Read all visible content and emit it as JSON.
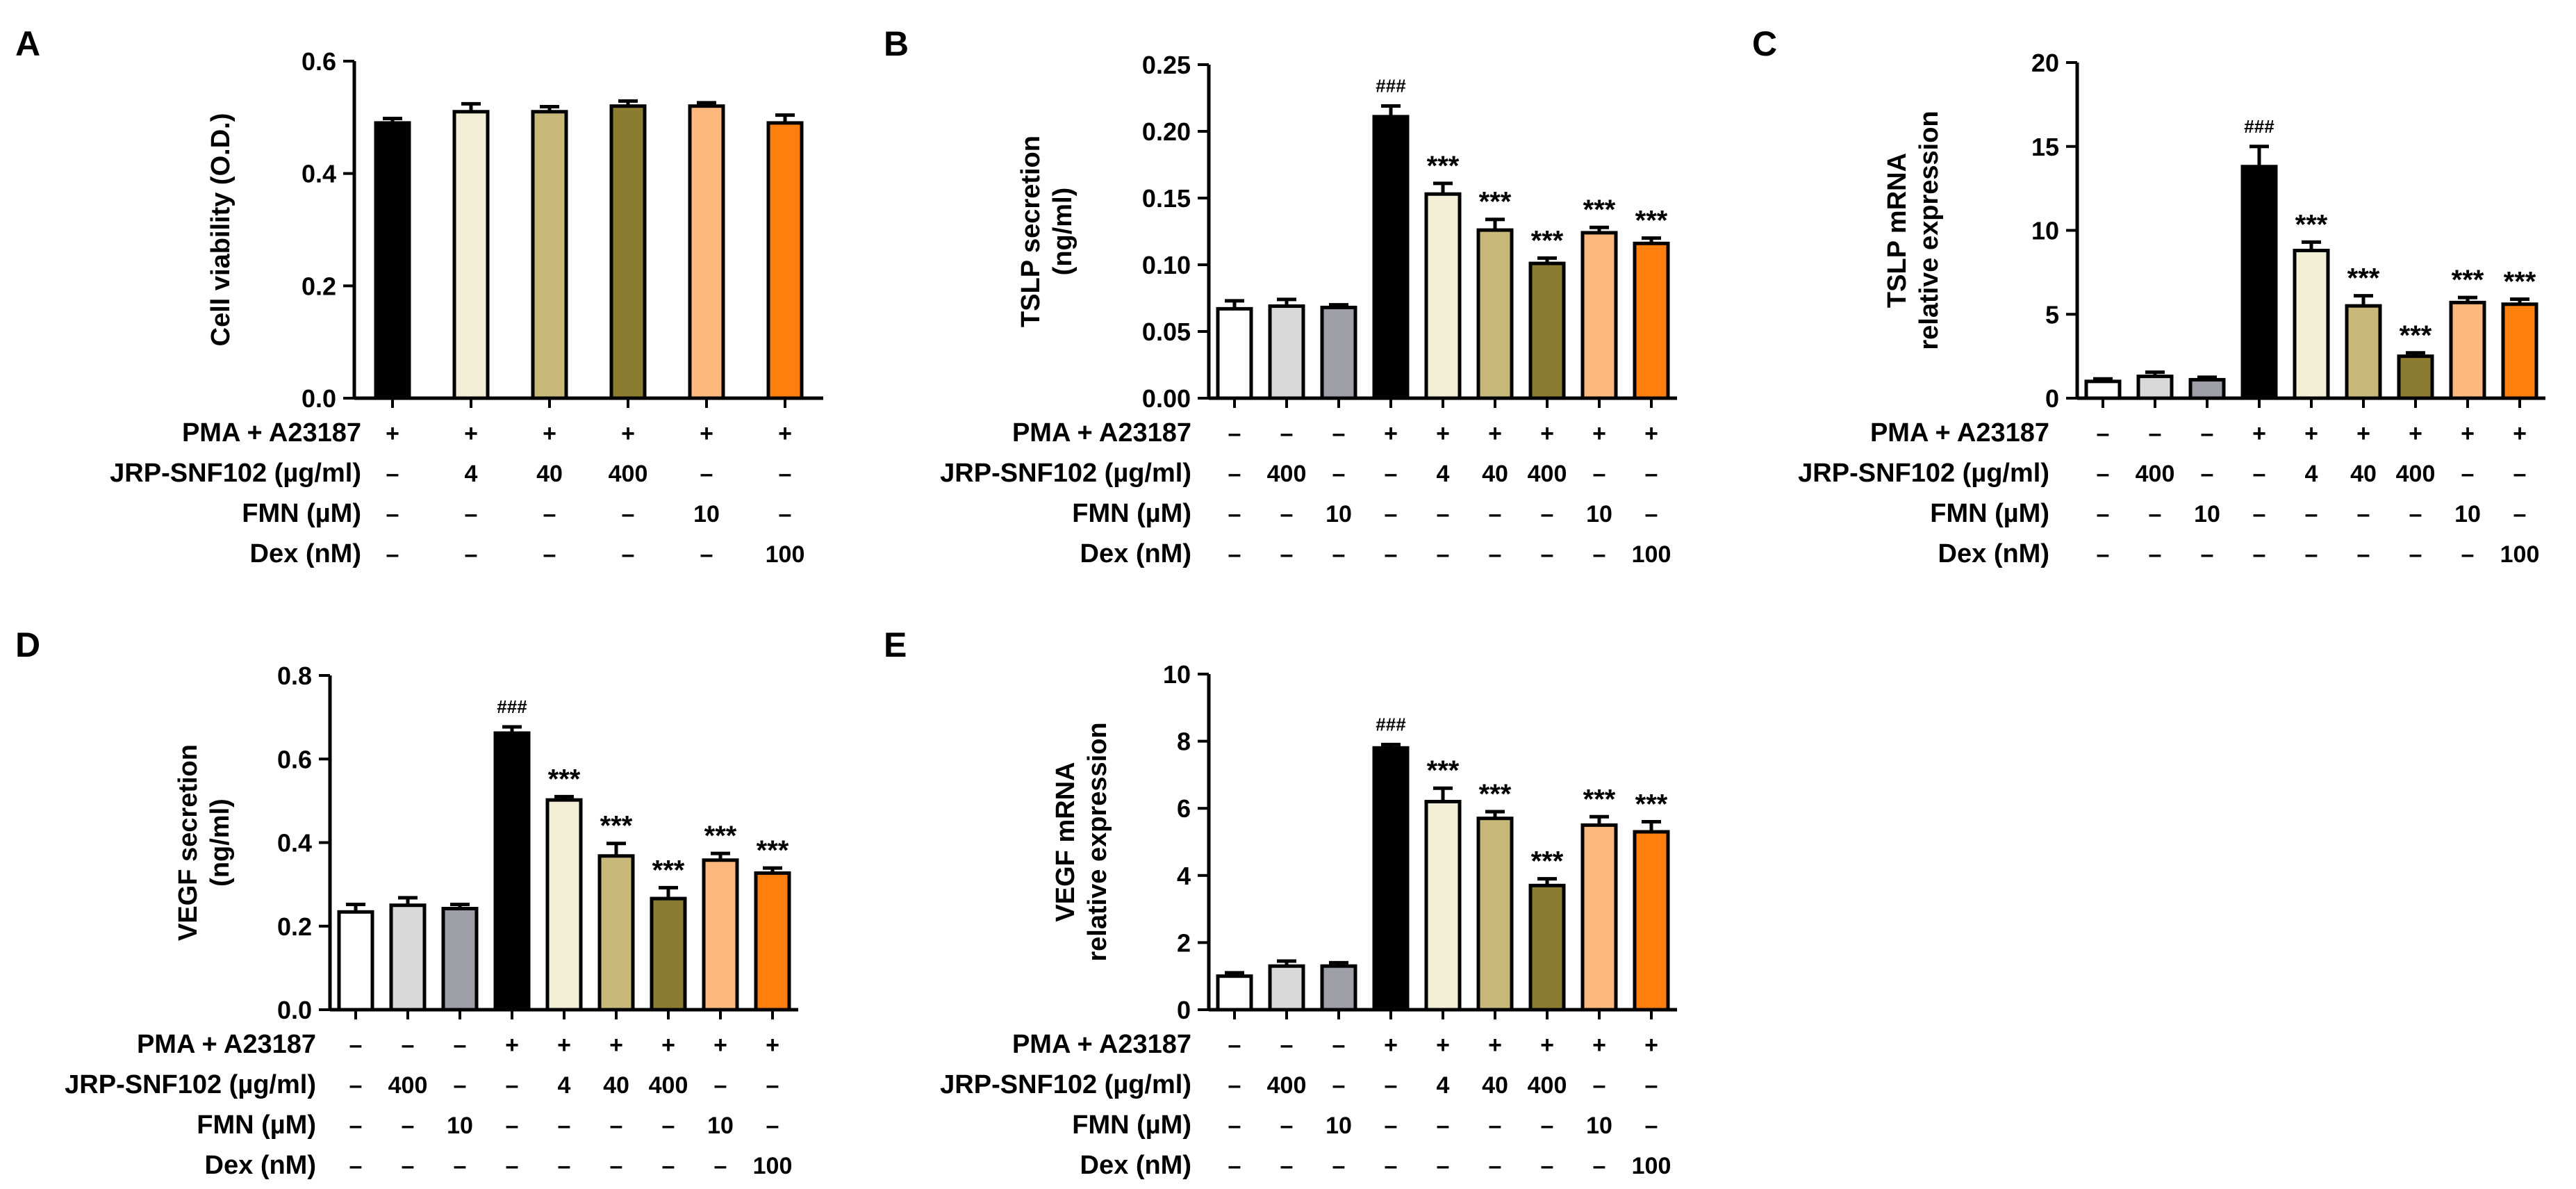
{
  "figure": {
    "panels": [
      {
        "id": "A",
        "letter": "A"
      },
      {
        "id": "B",
        "letter": "B"
      },
      {
        "id": "C",
        "letter": "C"
      },
      {
        "id": "D",
        "letter": "D"
      },
      {
        "id": "E",
        "letter": "E"
      }
    ]
  },
  "chart_data": [
    {
      "panel": "A",
      "type": "bar",
      "title": "",
      "ylabel": [
        "Cell viability (O.D.)"
      ],
      "ylim": [
        0,
        0.6
      ],
      "yticks": [
        "0.0",
        "0.2",
        "0.4",
        "0.6"
      ],
      "bar_colors": [
        "#000000",
        "#F3EFD7",
        "#C8B87A",
        "#8C7C32",
        "#FDB87E",
        "#FF7F0E"
      ],
      "values": [
        0.49,
        0.51,
        0.51,
        0.52,
        0.52,
        0.49
      ],
      "errors": [
        0.008,
        0.014,
        0.009,
        0.009,
        0.006,
        0.014
      ],
      "annotations": [
        "",
        "",
        "",
        "",
        "",
        ""
      ],
      "treatment_rows": [
        {
          "label": "PMA + A23187",
          "symbols": [
            "+",
            "+",
            "+",
            "+",
            "+",
            "+"
          ]
        },
        {
          "label": "JRP-SNF102 (µg/ml)",
          "symbols": [
            "–",
            "4",
            "40",
            "400",
            "–",
            "–"
          ]
        },
        {
          "label": "FMN (µM)",
          "symbols": [
            "–",
            "–",
            "–",
            "–",
            "10",
            "–"
          ]
        },
        {
          "label": "Dex (nM)",
          "symbols": [
            "–",
            "–",
            "–",
            "–",
            "–",
            "100"
          ]
        }
      ]
    },
    {
      "panel": "B",
      "type": "bar",
      "title": "",
      "ylabel": [
        "TSLP secretion",
        "(ng/ml)"
      ],
      "ylim": [
        0,
        0.25
      ],
      "yticks": [
        "0.00",
        "0.05",
        "0.10",
        "0.15",
        "0.20",
        "0.25"
      ],
      "bar_colors": [
        "#FFFFFF",
        "#D9D9D9",
        "#9E9EA6",
        "#000000",
        "#F3EFD7",
        "#C8B87A",
        "#8C7C32",
        "#FDB87E",
        "#FF7F0E"
      ],
      "values": [
        0.067,
        0.069,
        0.068,
        0.211,
        0.153,
        0.126,
        0.101,
        0.124,
        0.116
      ],
      "errors": [
        0.006,
        0.005,
        0.002,
        0.008,
        0.008,
        0.008,
        0.004,
        0.004,
        0.004
      ],
      "annotations": [
        "",
        "",
        "",
        "###",
        "***",
        "***",
        "***",
        "***",
        "***"
      ],
      "treatment_rows": [
        {
          "label": "PMA + A23187",
          "symbols": [
            "–",
            "–",
            "–",
            "+",
            "+",
            "+",
            "+",
            "+",
            "+"
          ]
        },
        {
          "label": "JRP-SNF102 (µg/ml)",
          "symbols": [
            "–",
            "400",
            "–",
            "–",
            "4",
            "40",
            "400",
            "–",
            "–"
          ]
        },
        {
          "label": "FMN (µM)",
          "symbols": [
            "–",
            "–",
            "10",
            "–",
            "–",
            "–",
            "–",
            "10",
            "–"
          ]
        },
        {
          "label": "Dex (nM)",
          "symbols": [
            "–",
            "–",
            "–",
            "–",
            "–",
            "–",
            "–",
            "–",
            "100"
          ]
        }
      ]
    },
    {
      "panel": "C",
      "type": "bar",
      "title": "",
      "ylabel": [
        "TSLP mRNA",
        "relative expression"
      ],
      "ylim": [
        0,
        20
      ],
      "yticks": [
        "0",
        "5",
        "10",
        "15",
        "20"
      ],
      "bar_colors": [
        "#FFFFFF",
        "#D9D9D9",
        "#9E9EA6",
        "#000000",
        "#F3EFD7",
        "#C8B87A",
        "#8C7C32",
        "#FDB87E",
        "#FF7F0E"
      ],
      "values": [
        1.0,
        1.3,
        1.1,
        13.8,
        8.8,
        5.5,
        2.5,
        5.7,
        5.6
      ],
      "errors": [
        0.15,
        0.25,
        0.15,
        1.2,
        0.5,
        0.6,
        0.2,
        0.3,
        0.3
      ],
      "annotations": [
        "",
        "",
        "",
        "###",
        "***",
        "***",
        "***",
        "***",
        "***"
      ],
      "treatment_rows": [
        {
          "label": "PMA + A23187",
          "symbols": [
            "–",
            "–",
            "–",
            "+",
            "+",
            "+",
            "+",
            "+",
            "+"
          ]
        },
        {
          "label": "JRP-SNF102 (µg/ml)",
          "symbols": [
            "–",
            "400",
            "–",
            "–",
            "4",
            "40",
            "400",
            "–",
            "–"
          ]
        },
        {
          "label": "FMN (µM)",
          "symbols": [
            "–",
            "–",
            "10",
            "–",
            "–",
            "–",
            "–",
            "10",
            "–"
          ]
        },
        {
          "label": "Dex (nM)",
          "symbols": [
            "–",
            "–",
            "–",
            "–",
            "–",
            "–",
            "–",
            "–",
            "100"
          ]
        }
      ]
    },
    {
      "panel": "D",
      "type": "bar",
      "title": "",
      "ylabel": [
        "VEGF secretion",
        "(ng/ml)"
      ],
      "ylim": [
        0,
        0.8
      ],
      "yticks": [
        "0.0",
        "0.2",
        "0.4",
        "0.6",
        "0.8"
      ],
      "bar_colors": [
        "#FFFFFF",
        "#D9D9D9",
        "#9E9EA6",
        "#000000",
        "#F3EFD7",
        "#C8B87A",
        "#8C7C32",
        "#FDB87E",
        "#FF7F0E"
      ],
      "values": [
        0.234,
        0.25,
        0.242,
        0.662,
        0.502,
        0.368,
        0.266,
        0.358,
        0.327
      ],
      "errors": [
        0.018,
        0.018,
        0.01,
        0.015,
        0.008,
        0.03,
        0.026,
        0.016,
        0.012
      ],
      "annotations": [
        "",
        "",
        "",
        "###",
        "***",
        "***",
        "***",
        "***",
        "***"
      ],
      "treatment_rows": [
        {
          "label": "PMA + A23187",
          "symbols": [
            "–",
            "–",
            "–",
            "+",
            "+",
            "+",
            "+",
            "+",
            "+"
          ]
        },
        {
          "label": "JRP-SNF102 (µg/ml)",
          "symbols": [
            "–",
            "400",
            "–",
            "–",
            "4",
            "40",
            "400",
            "–",
            "–"
          ]
        },
        {
          "label": "FMN (µM)",
          "symbols": [
            "–",
            "–",
            "10",
            "–",
            "–",
            "–",
            "–",
            "10",
            "–"
          ]
        },
        {
          "label": "Dex (nM)",
          "symbols": [
            "–",
            "–",
            "–",
            "–",
            "–",
            "–",
            "–",
            "–",
            "100"
          ]
        }
      ]
    },
    {
      "panel": "E",
      "type": "bar",
      "title": "",
      "ylabel": [
        "VEGF mRNA",
        "relative expression"
      ],
      "ylim": [
        0,
        10
      ],
      "yticks": [
        "0",
        "2",
        "4",
        "6",
        "8",
        "10"
      ],
      "bar_colors": [
        "#FFFFFF",
        "#D9D9D9",
        "#9E9EA6",
        "#000000",
        "#F3EFD7",
        "#C8B87A",
        "#8C7C32",
        "#FDB87E",
        "#FF7F0E"
      ],
      "values": [
        1.0,
        1.3,
        1.3,
        7.8,
        6.2,
        5.7,
        3.7,
        5.5,
        5.3
      ],
      "errors": [
        0.1,
        0.15,
        0.1,
        0.1,
        0.4,
        0.2,
        0.2,
        0.25,
        0.3
      ],
      "annotations": [
        "",
        "",
        "",
        "###",
        "***",
        "***",
        "***",
        "***",
        "***"
      ],
      "treatment_rows": [
        {
          "label": "PMA + A23187",
          "symbols": [
            "–",
            "–",
            "–",
            "+",
            "+",
            "+",
            "+",
            "+",
            "+"
          ]
        },
        {
          "label": "JRP-SNF102 (µg/ml)",
          "symbols": [
            "–",
            "400",
            "–",
            "–",
            "4",
            "40",
            "400",
            "–",
            "–"
          ]
        },
        {
          "label": "FMN (µM)",
          "symbols": [
            "–",
            "–",
            "10",
            "–",
            "–",
            "–",
            "–",
            "10",
            "–"
          ]
        },
        {
          "label": "Dex (nM)",
          "symbols": [
            "–",
            "–",
            "–",
            "–",
            "–",
            "–",
            "–",
            "–",
            "100"
          ]
        }
      ]
    }
  ]
}
